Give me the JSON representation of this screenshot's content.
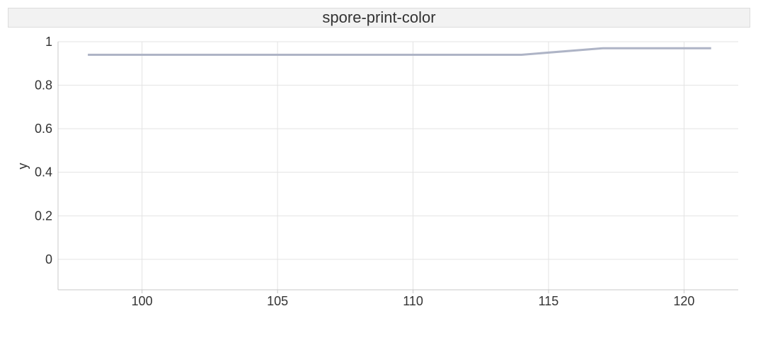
{
  "chart_data": {
    "type": "line",
    "title": "spore-print-color",
    "xlabel": "",
    "ylabel": "y",
    "xlim": [
      96.9,
      122.0
    ],
    "ylim": [
      -0.14,
      1.0
    ],
    "x_ticks": [
      100,
      105,
      110,
      115,
      120
    ],
    "y_ticks": [
      0,
      0.2,
      0.4,
      0.6,
      0.8,
      1
    ],
    "grid": true,
    "series": [
      {
        "x": [
          98,
          114,
          117,
          121
        ],
        "values": [
          0.94,
          0.94,
          0.97,
          0.97
        ],
        "color": "#aeb4c6"
      }
    ]
  }
}
